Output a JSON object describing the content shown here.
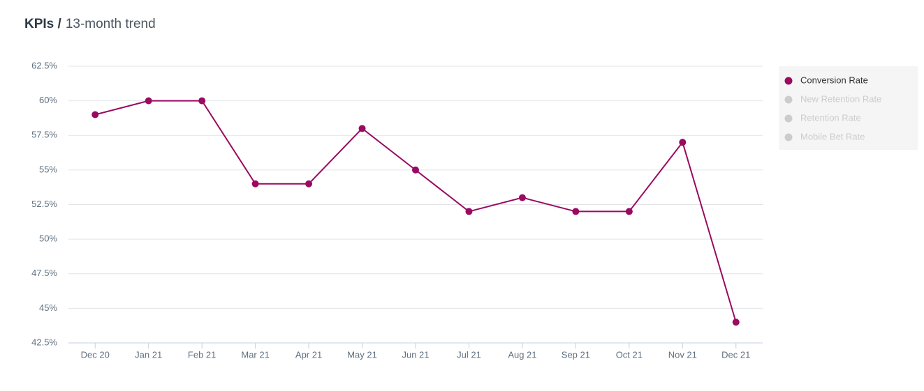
{
  "chart_data": {
    "type": "line",
    "title": "KPIs /",
    "subtitle": "13-month trend",
    "categories": [
      "Dec 20",
      "Jan 21",
      "Feb 21",
      "Mar 21",
      "Apr 21",
      "May 21",
      "Jun 21",
      "Jul 21",
      "Aug 21",
      "Sep 21",
      "Oct 21",
      "Nov 21",
      "Dec 21"
    ],
    "series": [
      {
        "name": "Conversion Rate",
        "color": "#990a60",
        "values": [
          59,
          60,
          60,
          54,
          54,
          58,
          55,
          52,
          53,
          52,
          52,
          57,
          44
        ]
      },
      {
        "name": "New Retention Rate",
        "color": "#cccccc",
        "hidden": true
      },
      {
        "name": "Retention Rate",
        "color": "#cccccc",
        "hidden": true
      },
      {
        "name": "Mobile Bet Rate",
        "color": "#cccccc",
        "hidden": true
      }
    ],
    "ylim": [
      42.5,
      62.5
    ],
    "yticks": [
      {
        "value": 42.5,
        "label": "42.5%"
      },
      {
        "value": 45,
        "label": "45%"
      },
      {
        "value": 47.5,
        "label": "47.5%"
      },
      {
        "value": 50,
        "label": "50%"
      },
      {
        "value": 52.5,
        "label": "52.5%"
      },
      {
        "value": 55,
        "label": "55%"
      },
      {
        "value": 57.5,
        "label": "57.5%"
      },
      {
        "value": 60,
        "label": "60%"
      },
      {
        "value": 62.5,
        "label": "62.5%"
      }
    ],
    "grid": true,
    "legend": "right"
  }
}
